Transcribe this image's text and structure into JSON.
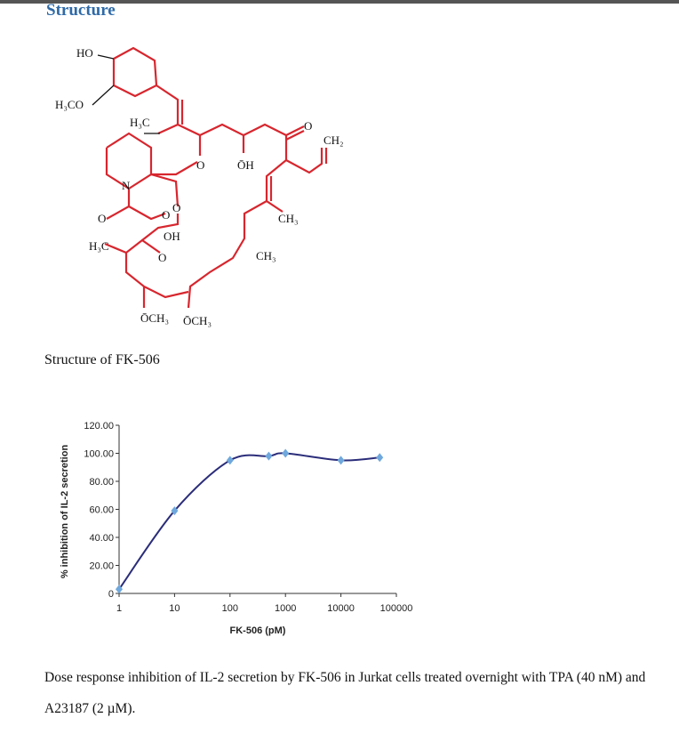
{
  "header": {
    "title": "Structure"
  },
  "structure": {
    "labels": [
      {
        "text": "HO"
      },
      {
        "text": "H₃CO"
      },
      {
        "text": "H₃C"
      },
      {
        "text": "N"
      },
      {
        "text": "O"
      },
      {
        "text": "ŌH"
      },
      {
        "text": "O"
      },
      {
        "text": "CH₂"
      },
      {
        "text": "O"
      },
      {
        "text": "O"
      },
      {
        "text": "O"
      },
      {
        "text": "OH"
      },
      {
        "text": "CH₃"
      },
      {
        "text": "H₃C"
      },
      {
        "text": "O"
      },
      {
        "text": "CH₃"
      },
      {
        "text": "ŌCH₃"
      },
      {
        "text": "ŌCH₃"
      }
    ],
    "caption": "Structure of FK-506"
  },
  "chart_data": {
    "type": "line",
    "xlabel": "FK-506 (pM)",
    "ylabel": "% inhibition of IL-2 secretion",
    "x": [
      1,
      10,
      100,
      500,
      1000,
      10000,
      50000
    ],
    "values": [
      3,
      59,
      95,
      98,
      100,
      95,
      97
    ],
    "color": "#2b2d7a",
    "marker_color": "#6fa8dc",
    "xscale": "log",
    "xlim": [
      1,
      100000
    ],
    "xticks": [
      1,
      10,
      100,
      1000,
      10000,
      100000
    ],
    "ylim": [
      0,
      120
    ],
    "yticks": [
      0,
      {
        "value": 20,
        "label": "20.00"
      },
      {
        "value": 40,
        "label": "40.00"
      },
      {
        "value": 60,
        "label": "60.00"
      },
      {
        "value": 80,
        "label": "80.00"
      },
      {
        "value": 100,
        "label": "100.00"
      },
      {
        "value": 120,
        "label": "120.00"
      }
    ]
  },
  "caption": "Dose response inhibition of IL-2 secretion by FK-506 in Jurkat cells treated overnight with TPA (40 nM) and A23187 (2 µM)."
}
